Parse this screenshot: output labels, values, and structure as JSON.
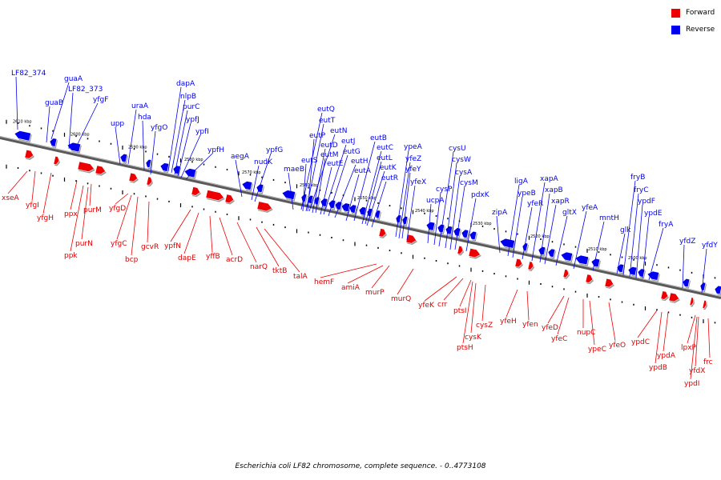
{
  "legend": {
    "items": [
      {
        "label": "Forward",
        "color": "#ee0000"
      },
      {
        "label": "Reverse",
        "color": "#0000ee"
      }
    ]
  },
  "caption": "Escherichia coli LF82 chromosome, complete sequence. - 0..4773108",
  "scale_labels": [
    "2610 kbp",
    "2600 kbp",
    "2590 kbp",
    "2580 kbp",
    "2570 kbp",
    "2560 kbp",
    "2550 kbp",
    "2540 kbp",
    "2530 kbp",
    "2520 kbp",
    "2510 kbp",
    "2500 kbp"
  ],
  "genes": {
    "reverse": [
      "LF82_374",
      "guaA",
      "guaB",
      "LF82_373",
      "yfgF",
      "upp",
      "uraA",
      "hda",
      "yfgO",
      "dapA",
      "nlpB",
      "purC",
      "ypfJ",
      "ypfI",
      "ypfH",
      "aegA",
      "ypfG",
      "nudK",
      "maeB",
      "eutQ",
      "eutT",
      "eutN",
      "eutP",
      "eutS",
      "eutD",
      "eutM",
      "eutJ",
      "eutG",
      "eutE",
      "eutH",
      "eutA",
      "eutB",
      "eutC",
      "eutL",
      "eutK",
      "eutR",
      "ypeA",
      "yfeZ",
      "yfeY",
      "yfeX",
      "ucpA",
      "cysP",
      "cysU",
      "cysW",
      "cysA",
      "cysM",
      "pdxK",
      "zipA",
      "ligA",
      "ypeB",
      "yfeR",
      "xapA",
      "xapB",
      "xapR",
      "gltX",
      "yfeA",
      "mntH",
      "glk",
      "fryB",
      "fryC",
      "ypdF",
      "ypdE",
      "fryA",
      "yfdZ",
      "yfdY"
    ],
    "forward": [
      "xseA",
      "yfgI",
      "yfgH",
      "ppx",
      "purM",
      "purN",
      "ppk",
      "yfgD",
      "yfgC",
      "bcp",
      "gcvR",
      "ypfN",
      "dapE",
      "yffB",
      "acrD",
      "narQ",
      "tktB",
      "talA",
      "hemF",
      "amiA",
      "murP",
      "murQ",
      "yfeK",
      "crr",
      "ptsI",
      "cysK",
      "ptsH",
      "cysZ",
      "yfeH",
      "yfen",
      "yfeD",
      "yfeC",
      "nupC",
      "ypeC",
      "yfeO",
      "ypdC",
      "ypdA",
      "ypdB",
      "lpxP",
      "yfdX",
      "ypdI",
      "frc"
    ]
  }
}
